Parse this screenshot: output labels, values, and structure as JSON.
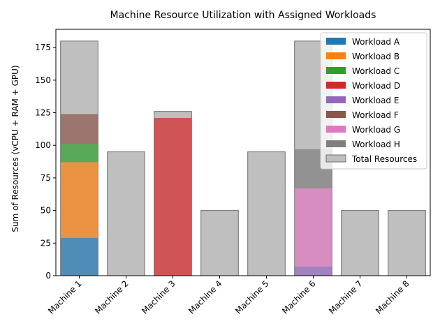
{
  "chart_data": {
    "type": "bar",
    "title": "Machine Resource Utilization with Assigned Workloads",
    "xlabel": "",
    "ylabel": "Sum of Resources (vCPU + RAM + GPU)",
    "ylim": [
      0,
      189
    ],
    "yticks": [
      0,
      25,
      50,
      75,
      100,
      125,
      150,
      175
    ],
    "grid": false,
    "legend_position": "top-right",
    "categories": [
      "Machine 1",
      "Machine 2",
      "Machine 3",
      "Machine 4",
      "Machine 5",
      "Machine 6",
      "Machine 7",
      "Machine 8"
    ],
    "total_resources": {
      "name": "Total Resources",
      "color": "#bfbfbf",
      "values": [
        180,
        95,
        126,
        50,
        95,
        180,
        50,
        50
      ]
    },
    "series": [
      {
        "name": "Workload A",
        "color": "#1f77b4",
        "values": [
          29,
          0,
          0,
          0,
          0,
          0,
          0,
          0
        ]
      },
      {
        "name": "Workload B",
        "color": "#ff7f0e",
        "values": [
          58,
          0,
          0,
          0,
          0,
          0,
          0,
          0
        ]
      },
      {
        "name": "Workload C",
        "color": "#2ca02c",
        "values": [
          14,
          0,
          0,
          0,
          0,
          0,
          0,
          0
        ]
      },
      {
        "name": "Workload D",
        "color": "#d62728",
        "values": [
          0,
          0,
          121,
          0,
          0,
          0,
          0,
          0
        ]
      },
      {
        "name": "Workload E",
        "color": "#9467bd",
        "values": [
          0,
          0,
          0,
          0,
          0,
          7,
          0,
          0
        ]
      },
      {
        "name": "Workload F",
        "color": "#8c564b",
        "values": [
          23,
          0,
          0,
          0,
          0,
          0,
          0,
          0
        ]
      },
      {
        "name": "Workload G",
        "color": "#e377c2",
        "values": [
          0,
          0,
          0,
          0,
          0,
          60,
          0,
          0
        ]
      },
      {
        "name": "Workload H",
        "color": "#7f7f7f",
        "values": [
          0,
          0,
          0,
          0,
          0,
          30,
          0,
          0
        ]
      }
    ]
  }
}
